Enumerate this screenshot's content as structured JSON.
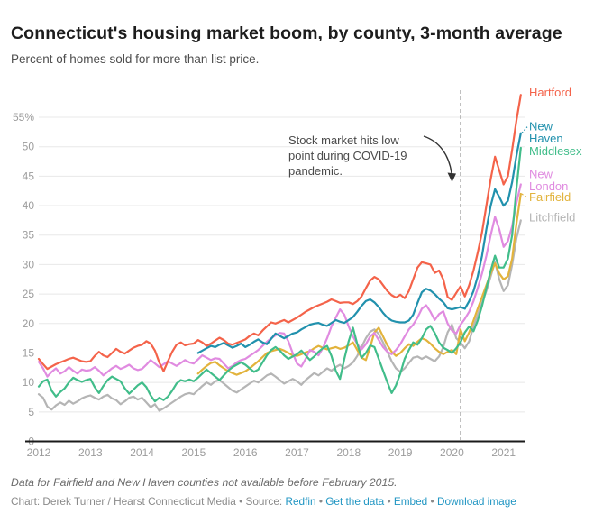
{
  "header": {
    "title": "Connecticut's housing market boom, by county, 3-month average",
    "subtitle": "Percent of homes sold for more than list price."
  },
  "chart_data": {
    "type": "line",
    "title": "Connecticut's housing market boom, by county, 3-month average",
    "subtitle": "Percent of homes sold for more than list price.",
    "unit": "percent of homes sold over list price",
    "frequency": "monthly",
    "x_start": "2012-01",
    "x_end": "2021-05",
    "ylim": [
      0,
      60
    ],
    "grid": "horizontal",
    "legend_position": "right-edge-labels",
    "x_ticks": [
      2012,
      2013,
      2014,
      2015,
      2016,
      2017,
      2018,
      2019,
      2020,
      2021
    ],
    "y_ticks": [
      0,
      5,
      10,
      15,
      20,
      25,
      30,
      35,
      40,
      45,
      50,
      55
    ],
    "y_tick_labels": [
      "0",
      "5",
      "10",
      "15",
      "20",
      "25",
      "30",
      "35",
      "40",
      "45",
      "50",
      "55%"
    ],
    "annotation": {
      "lines": [
        "Stock market hits low",
        "point during COVID-19",
        "pandemic."
      ],
      "marker_date": "2020-03",
      "marker_style": "vertical-dashed-line"
    },
    "series": [
      {
        "name": "Litchfield",
        "color": "#b5b5b5",
        "start": "2012-01",
        "label_lines": [
          "Litchfield"
        ],
        "values": [
          8.0,
          7.4,
          5.9,
          5.4,
          6.1,
          6.6,
          6.2,
          6.9,
          6.4,
          6.8,
          7.3,
          7.6,
          7.8,
          7.4,
          7.1,
          7.6,
          7.9,
          7.3,
          7.0,
          6.3,
          6.8,
          7.4,
          7.6,
          7.1,
          7.4,
          6.6,
          5.8,
          6.3,
          5.2,
          5.6,
          6.1,
          6.6,
          7.1,
          7.6,
          8.0,
          8.2,
          8.0,
          8.7,
          9.4,
          10.0,
          9.6,
          10.2,
          10.4,
          9.8,
          9.2,
          8.6,
          8.3,
          8.8,
          9.3,
          9.8,
          10.3,
          10.0,
          10.6,
          11.2,
          11.5,
          11.0,
          10.4,
          9.8,
          10.2,
          10.6,
          10.2,
          9.6,
          10.4,
          11.0,
          11.6,
          11.2,
          11.8,
          12.4,
          12.0,
          12.6,
          13.0,
          12.4,
          12.8,
          13.4,
          14.5,
          16.0,
          17.5,
          18.6,
          19.0,
          18.2,
          16.8,
          15.2,
          13.6,
          12.4,
          11.8,
          12.4,
          13.3,
          14.2,
          14.4,
          14.0,
          14.4,
          14.0,
          13.6,
          14.4,
          16.0,
          18.5,
          19.8,
          17.5,
          16.8,
          15.8,
          17.0,
          19.5,
          21.5,
          23.5,
          25.5,
          28.0,
          30.5,
          27.5,
          25.5,
          26.5,
          30.0,
          34.5,
          37.5
        ]
      },
      {
        "name": "Fairfield",
        "color": "#e2b33c",
        "start": "2015-02",
        "label_lines": [
          "Fairfield"
        ],
        "values": [
          11.5,
          12.2,
          12.8,
          13.3,
          13.5,
          12.9,
          12.4,
          11.9,
          11.6,
          11.3,
          11.6,
          11.9,
          12.4,
          13.0,
          13.6,
          14.3,
          15.0,
          15.3,
          15.5,
          15.7,
          15.4,
          15.0,
          14.6,
          14.5,
          14.8,
          15.1,
          15.3,
          15.8,
          16.2,
          15.9,
          15.6,
          15.8,
          16.0,
          15.7,
          15.9,
          16.3,
          16.8,
          15.5,
          14.2,
          13.8,
          16.0,
          18.5,
          19.3,
          17.8,
          16.3,
          15.2,
          14.5,
          15.0,
          15.8,
          16.5,
          16.2,
          16.9,
          17.5,
          17.2,
          16.6,
          15.8,
          15.2,
          14.8,
          15.2,
          15.5,
          14.8,
          19.0,
          17.0,
          18.5,
          20.5,
          22.5,
          24.5,
          26.5,
          28.5,
          30.2,
          28.5,
          27.5,
          28.0,
          31.0,
          37.0,
          42.0
        ]
      },
      {
        "name": "New London",
        "color": "#e08be0",
        "start": "2012-01",
        "label_lines": [
          "New",
          "London"
        ],
        "values": [
          13.5,
          12.4,
          11.0,
          11.8,
          12.4,
          11.5,
          11.9,
          12.6,
          12.0,
          11.5,
          12.2,
          12.0,
          12.1,
          12.6,
          12.0,
          11.2,
          11.8,
          12.4,
          12.8,
          12.3,
          12.6,
          13.0,
          12.4,
          12.1,
          12.3,
          13.0,
          13.8,
          13.2,
          12.6,
          13.1,
          13.6,
          13.2,
          12.8,
          13.3,
          13.8,
          13.4,
          13.2,
          13.9,
          14.6,
          14.2,
          13.8,
          14.1,
          14.0,
          13.2,
          12.4,
          12.8,
          13.4,
          13.8,
          14.0,
          14.5,
          15.0,
          15.5,
          16.2,
          16.9,
          17.5,
          18.0,
          18.4,
          18.3,
          17.0,
          15.0,
          13.2,
          12.7,
          14.0,
          15.5,
          15.2,
          14.6,
          15.8,
          17.5,
          19.5,
          21.0,
          22.4,
          21.5,
          19.5,
          17.8,
          16.5,
          15.6,
          16.5,
          17.8,
          18.4,
          17.2,
          16.0,
          15.2,
          14.8,
          15.5,
          16.5,
          17.8,
          19.0,
          19.8,
          21.0,
          22.5,
          23.1,
          22.0,
          20.6,
          21.6,
          22.1,
          20.0,
          18.8,
          18.3,
          19.8,
          20.8,
          22.0,
          23.8,
          26.0,
          28.5,
          31.5,
          35.0,
          38.1,
          36.0,
          33.0,
          34.0,
          36.5,
          40.5,
          43.6
        ]
      },
      {
        "name": "Middlesex",
        "color": "#41bd8a",
        "start": "2012-01",
        "label_lines": [
          "Middlesex"
        ],
        "values": [
          9.3,
          10.2,
          10.5,
          8.6,
          7.6,
          8.4,
          9.0,
          10.0,
          10.8,
          10.4,
          10.1,
          10.4,
          10.6,
          9.2,
          8.2,
          9.4,
          10.4,
          11.0,
          10.6,
          10.2,
          9.0,
          8.1,
          8.8,
          9.5,
          10.0,
          9.2,
          7.8,
          6.8,
          7.4,
          7.0,
          7.6,
          8.6,
          9.8,
          10.4,
          10.2,
          10.5,
          10.2,
          10.8,
          11.5,
          12.2,
          11.6,
          11.0,
          10.4,
          11.2,
          12.0,
          12.6,
          13.0,
          13.4,
          13.0,
          12.4,
          11.8,
          12.2,
          13.4,
          14.6,
          15.5,
          16.0,
          15.4,
          14.6,
          14.0,
          14.4,
          14.8,
          15.4,
          14.6,
          13.8,
          14.4,
          15.2,
          15.8,
          16.2,
          14.5,
          12.0,
          10.6,
          14.0,
          17.0,
          19.3,
          16.5,
          14.2,
          15.0,
          16.3,
          16.0,
          14.0,
          12.0,
          10.0,
          8.2,
          9.5,
          11.5,
          14.0,
          15.5,
          16.8,
          16.4,
          17.5,
          19.0,
          19.6,
          18.4,
          16.8,
          15.9,
          15.5,
          15.0,
          15.8,
          16.8,
          18.5,
          19.5,
          18.7,
          20.5,
          23.0,
          26.0,
          29.0,
          31.5,
          29.5,
          29.5,
          31.0,
          35.0,
          43.0,
          49.8
        ]
      },
      {
        "name": "New Haven",
        "color": "#2191ad",
        "start": "2015-02",
        "label_lines": [
          "New",
          "Haven"
        ],
        "values": [
          15.0,
          15.4,
          15.8,
          16.2,
          16.0,
          16.4,
          16.7,
          16.3,
          15.9,
          16.2,
          16.6,
          16.0,
          16.4,
          16.9,
          17.3,
          16.8,
          16.5,
          17.4,
          18.3,
          17.9,
          17.5,
          17.9,
          18.3,
          18.5,
          19.0,
          19.4,
          19.8,
          20.0,
          20.1,
          19.8,
          19.6,
          20.1,
          20.6,
          20.3,
          20.1,
          20.6,
          21.1,
          22.0,
          23.0,
          23.8,
          24.1,
          23.6,
          22.8,
          21.8,
          21.0,
          20.5,
          20.3,
          20.2,
          20.2,
          20.5,
          21.5,
          23.5,
          25.3,
          25.9,
          25.6,
          25.0,
          24.2,
          23.6,
          22.6,
          22.4,
          22.6,
          22.8,
          22.5,
          23.8,
          25.5,
          28.0,
          31.5,
          36.0,
          40.0,
          42.8,
          41.5,
          40.0,
          40.8,
          44.0,
          48.5,
          52.3
        ]
      },
      {
        "name": "Hartford",
        "color": "#f4634a",
        "start": "2012-01",
        "label_lines": [
          "Hartford"
        ],
        "values": [
          14.0,
          13.1,
          12.3,
          12.7,
          13.1,
          13.4,
          13.7,
          14.0,
          14.2,
          13.9,
          13.6,
          13.5,
          13.6,
          14.5,
          15.2,
          14.6,
          14.3,
          15.0,
          15.7,
          15.2,
          14.9,
          15.4,
          15.9,
          16.2,
          16.4,
          17.0,
          16.6,
          15.4,
          13.4,
          11.9,
          13.6,
          15.2,
          16.4,
          16.8,
          16.3,
          16.5,
          16.6,
          17.2,
          16.8,
          16.2,
          16.6,
          17.1,
          17.6,
          17.2,
          16.6,
          16.4,
          16.7,
          17.0,
          17.3,
          17.9,
          18.3,
          18.0,
          18.8,
          19.5,
          20.2,
          20.0,
          20.3,
          20.6,
          20.2,
          20.6,
          21.0,
          21.5,
          22.0,
          22.4,
          22.8,
          23.1,
          23.4,
          23.7,
          24.1,
          23.8,
          23.5,
          23.6,
          23.6,
          23.3,
          23.8,
          24.6,
          26.0,
          27.3,
          27.9,
          27.5,
          26.5,
          25.5,
          24.8,
          24.4,
          24.9,
          24.3,
          25.5,
          27.5,
          29.5,
          30.4,
          30.2,
          30.0,
          28.6,
          29.0,
          27.5,
          24.5,
          24.0,
          25.2,
          26.3,
          24.6,
          26.5,
          29.0,
          32.0,
          35.5,
          40.0,
          44.5,
          48.3,
          46.0,
          43.6,
          45.0,
          49.5,
          54.5,
          58.8
        ]
      }
    ]
  },
  "footer": {
    "note": "Data for Fairfield and New Haven counties not available before February 2015.",
    "credit_parts": [
      {
        "text": "Chart: Derek Turner / Hearst Connecticut Media"
      },
      {
        "text": " • "
      },
      {
        "text": "Source: "
      },
      {
        "link": "Redfin"
      },
      {
        "text": " • "
      },
      {
        "link": "Get the data"
      },
      {
        "text": " • "
      },
      {
        "link": "Embed"
      },
      {
        "text": " • "
      },
      {
        "link": "Download image"
      }
    ],
    "link_color": "#2196c3"
  },
  "style": {
    "grid_color": "#e8e8e8",
    "axis_color": "#1a1a1a",
    "tick_text_color": "#9c9c9c",
    "dashed_line_color": "#8c8c8c",
    "annotation_arrow_color": "#333333"
  }
}
